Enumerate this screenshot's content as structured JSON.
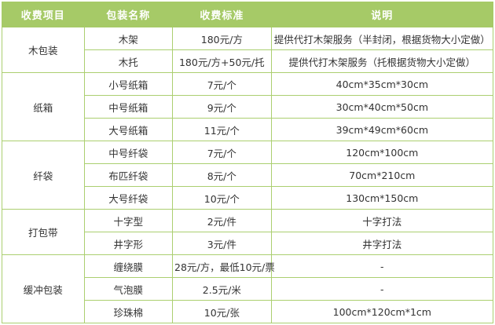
{
  "colors": {
    "header_bg": "#a6ca67",
    "border": "#abcf70",
    "header_text": "#ffffff",
    "body_text": "#333333",
    "row_bg": "#ffffff"
  },
  "table": {
    "headers": [
      "收费项目",
      "包装名称",
      "收费标准",
      "说明"
    ],
    "groups": [
      {
        "item": "木包装",
        "rows": [
          {
            "name": "木架",
            "price": "180元/方",
            "note": "提供代打木架服务（半封闭，根据货物大小定做）"
          },
          {
            "name": "木托",
            "price": "180元/方+50元/托",
            "note": "提供代打木架服务（托根据货物大小定做）"
          }
        ]
      },
      {
        "item": "纸箱",
        "rows": [
          {
            "name": "小号纸箱",
            "price": "7元/个",
            "note": "40cm*35cm*30cm"
          },
          {
            "name": "中号纸箱",
            "price": "9元/个",
            "note": "30cm*40cm*50cm"
          },
          {
            "name": "大号纸箱",
            "price": "11元/个",
            "note": "39cm*49cm*60cm"
          }
        ]
      },
      {
        "item": "纤袋",
        "rows": [
          {
            "name": "中号纤袋",
            "price": "7元/个",
            "note": "120cm*100cm"
          },
          {
            "name": "布匹纤袋",
            "price": "8元/个",
            "note": "70cm*210cm"
          },
          {
            "name": "大号纤袋",
            "price": "10元/个",
            "note": "130cm*150cm"
          }
        ]
      },
      {
        "item": "打包带",
        "rows": [
          {
            "name": "十字型",
            "price": "2元/件",
            "note": "十字打法"
          },
          {
            "name": "井字形",
            "price": "3元/件",
            "note": "井字打法"
          }
        ]
      },
      {
        "item": "缓冲包装",
        "rows": [
          {
            "name": "缠绕膜",
            "price": "28元/方，最低10元/票",
            "note": "-"
          },
          {
            "name": "气泡膜",
            "price": "2.5元/米",
            "note": "-"
          },
          {
            "name": "珍珠棉",
            "price": "10元/张",
            "note": "100cm*120cm*1cm"
          }
        ]
      }
    ]
  }
}
